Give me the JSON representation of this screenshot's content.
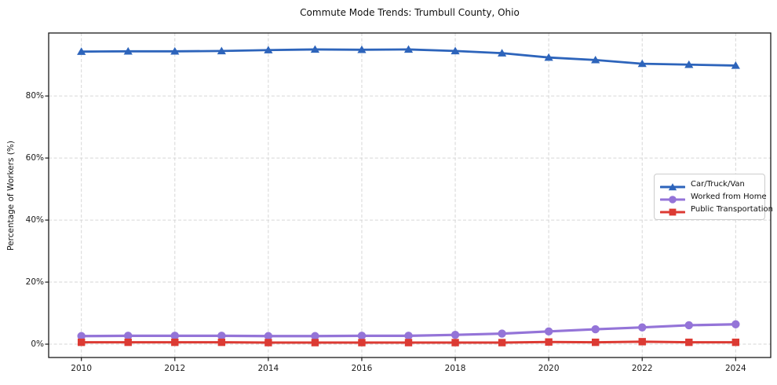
{
  "chart_data": {
    "type": "line",
    "title": "Commute Mode Trends: Trumbull County, Ohio",
    "xlabel": "",
    "ylabel": "Percentage of Workers (%)",
    "x": [
      2010,
      2011,
      2012,
      2013,
      2014,
      2015,
      2016,
      2017,
      2018,
      2019,
      2020,
      2021,
      2022,
      2023,
      2024
    ],
    "series": [
      {
        "name": "Car/Truck/Van",
        "color": "#2d64bb",
        "marker": "triangle",
        "values": [
          94.3,
          94.4,
          94.4,
          94.5,
          94.8,
          95.0,
          94.9,
          95.0,
          94.5,
          93.8,
          92.4,
          91.6,
          90.4,
          90.1,
          89.8
        ]
      },
      {
        "name": "Worked from Home",
        "color": "#9474d8",
        "marker": "circle",
        "values": [
          2.6,
          2.7,
          2.7,
          2.7,
          2.6,
          2.6,
          2.7,
          2.7,
          3.0,
          3.4,
          4.1,
          4.8,
          5.4,
          6.1,
          6.4
        ]
      },
      {
        "name": "Public Transportation",
        "color": "#dc3a33",
        "marker": "square",
        "values": [
          0.6,
          0.6,
          0.6,
          0.6,
          0.5,
          0.5,
          0.5,
          0.5,
          0.5,
          0.5,
          0.7,
          0.6,
          0.8,
          0.6,
          0.6
        ]
      }
    ],
    "x_tick_labels": [
      "2010",
      "2012",
      "2014",
      "2016",
      "2018",
      "2020",
      "2022",
      "2024"
    ],
    "x_tick_values": [
      2010,
      2012,
      2014,
      2016,
      2018,
      2020,
      2022,
      2024
    ],
    "y_tick_labels": [
      "0%",
      "20%",
      "40%",
      "60%",
      "80%"
    ],
    "y_tick_values": [
      0,
      20,
      40,
      60,
      80
    ],
    "xlim": [
      2009.3,
      2024.75
    ],
    "ylim": [
      -4.3,
      100.3
    ],
    "grid": true,
    "grid_style": "dashed",
    "legend_position": "center-right"
  },
  "colors": {
    "grid": "#d6d6d6",
    "spine": "#1a1a1a",
    "tick": "#1a1a1a",
    "background": "#ffffff"
  }
}
